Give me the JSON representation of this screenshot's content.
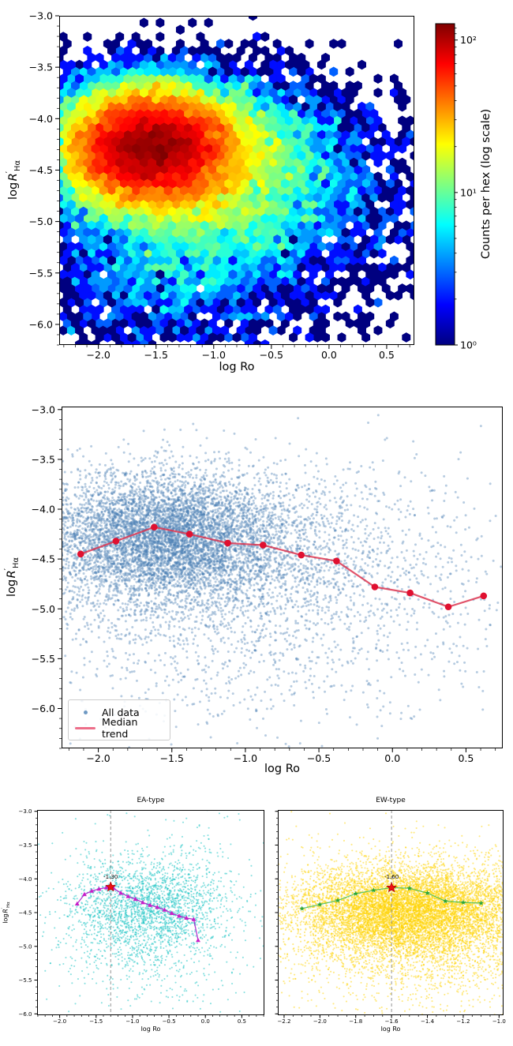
{
  "figure": {
    "background": "#ffffff"
  },
  "colors": {
    "all_scatter": "#4a80b4",
    "median_line": "#dc3550",
    "median_marker": "#e01030",
    "ea_scatter": "#27c7c7",
    "ea_line": "#aa22cc",
    "ea_marker": "#c81ec8",
    "ew_scatter": "#ffd400",
    "ew_line": "#3fba4a",
    "ew_marker": "#2aa63a",
    "peak_star": "#ee1111",
    "vline": "#888888",
    "legend_line": "#ed6e89"
  },
  "chart_data": [
    {
      "id": "hexbin-density",
      "type": "heatmap",
      "subtype": "hexbin",
      "xlabel": "log Ro",
      "ylabel": {
        "prefix": "log",
        "symbol": "R",
        "prime": "′",
        "sub": "Hα"
      },
      "xlim": [
        -2.34,
        0.74
      ],
      "ylim": [
        -6.2,
        -3.0
      ],
      "xticks": [
        -2.0,
        -1.5,
        -1.0,
        -0.5,
        0.0,
        0.5
      ],
      "yticks": [
        -3.0,
        -3.5,
        -4.0,
        -4.5,
        -5.0,
        -5.5,
        -6.0
      ],
      "colorbar": {
        "label": "Counts per hex (log scale)",
        "scale": "log",
        "vmax_approx": 128,
        "ticks": [
          {
            "value": 1,
            "label": "10⁰"
          },
          {
            "value": 10,
            "label": "10¹"
          },
          {
            "value": 100,
            "label": "10²"
          }
        ],
        "minor_ticks": [
          2,
          3,
          4,
          5,
          6,
          7,
          8,
          9,
          20,
          30,
          40,
          50,
          60,
          70,
          80,
          90,
          110,
          120
        ]
      },
      "density_model": {
        "gridsize": 44,
        "peak": {
          "x": -1.6,
          "y": -4.2
        },
        "clusters": [
          {
            "n": 20000,
            "cx": -1.55,
            "cy": -4.27,
            "sx": 0.4,
            "sy": 0.3
          },
          {
            "n": 5000,
            "cx": -1.0,
            "cy": -4.5,
            "sx": 0.65,
            "sy": 0.42
          },
          {
            "n": 2600,
            "cx": -0.9,
            "cy": -4.95,
            "sx": 0.85,
            "sy": 0.62
          },
          {
            "n": 900,
            "cx": -1.4,
            "cy": -5.5,
            "sx": 0.55,
            "sy": 0.45
          }
        ]
      }
    },
    {
      "id": "all-data-scatter",
      "type": "scatter",
      "xlabel": "log Ro",
      "ylabel": {
        "prefix": "log",
        "symbol": "R",
        "prime": "′",
        "sub": "Hα"
      },
      "xlim": [
        -2.25,
        0.75
      ],
      "ylim": [
        -6.4,
        -2.97
      ],
      "xticks": [
        -2.0,
        -1.5,
        -1.0,
        -0.5,
        0.0,
        0.5
      ],
      "yticks": [
        -3.0,
        -3.5,
        -4.0,
        -4.5,
        -5.0,
        -5.5,
        -6.0
      ],
      "legend": [
        {
          "label": "All data",
          "marker": "dot",
          "color": "#4a80b4"
        },
        {
          "label": "Median trend",
          "marker": "line",
          "color": "#ed6e89"
        }
      ],
      "median_trend": {
        "x": [
          -2.12,
          -1.88,
          -1.62,
          -1.38,
          -1.12,
          -0.88,
          -0.62,
          -0.38,
          -0.12,
          0.12,
          0.38,
          0.62
        ],
        "y": [
          -4.45,
          -4.32,
          -4.18,
          -4.25,
          -4.34,
          -4.36,
          -4.46,
          -4.52,
          -4.78,
          -4.84,
          -4.98,
          -4.87
        ]
      },
      "density_model": {
        "clusters": [
          {
            "n": 6000,
            "cx": -1.55,
            "cy": -4.27,
            "sx": 0.42,
            "sy": 0.32
          },
          {
            "n": 1700,
            "cx": -1.0,
            "cy": -4.5,
            "sx": 0.68,
            "sy": 0.45
          },
          {
            "n": 950,
            "cx": -0.85,
            "cy": -4.95,
            "sx": 0.9,
            "sy": 0.65
          },
          {
            "n": 300,
            "cx": -1.4,
            "cy": -5.45,
            "sx": 0.6,
            "sy": 0.5
          },
          {
            "n": 130,
            "cx": 0.15,
            "cy": -4.6,
            "sx": 0.4,
            "sy": 0.55
          }
        ]
      }
    },
    {
      "id": "ea-type",
      "type": "scatter",
      "title": "EA-type",
      "xlabel": "log Ro",
      "ylabel": {
        "prefix": "log",
        "symbol": "R",
        "prime": "′",
        "sub": "Hα"
      },
      "xlim": [
        -2.31,
        0.81
      ],
      "ylim": [
        -6.02,
        -2.98
      ],
      "xticks": [
        -2.0,
        -1.5,
        -1.0,
        -0.5,
        0.0,
        0.5
      ],
      "yticks": [
        -3.0,
        -3.5,
        -4.0,
        -4.5,
        -5.0,
        -5.5,
        -6.0
      ],
      "vline_x": -1.3,
      "peak": {
        "x": -1.3,
        "y": -4.12,
        "label": "-1.30"
      },
      "median_trend": {
        "x": [
          -1.76,
          -1.66,
          -1.56,
          -1.46,
          -1.36,
          -1.26,
          -1.16,
          -1.06,
          -0.96,
          -0.86,
          -0.76,
          -0.66,
          -0.56,
          -0.46,
          -0.36,
          -0.26,
          -0.16,
          -0.1
        ],
        "y": [
          -4.37,
          -4.23,
          -4.18,
          -4.15,
          -4.13,
          -4.14,
          -4.21,
          -4.26,
          -4.3,
          -4.35,
          -4.39,
          -4.42,
          -4.46,
          -4.51,
          -4.55,
          -4.58,
          -4.6,
          -4.91
        ]
      },
      "density_model": {
        "clusters": [
          {
            "n": 1900,
            "cx": -0.8,
            "cy": -4.42,
            "sx": 0.52,
            "sy": 0.36
          },
          {
            "n": 620,
            "cx": -0.85,
            "cy": -4.95,
            "sx": 0.75,
            "sy": 0.55
          },
          {
            "n": 280,
            "cx": -0.42,
            "cy": -4.05,
            "sx": 0.75,
            "sy": 0.6
          }
        ]
      }
    },
    {
      "id": "ew-type",
      "type": "scatter",
      "title": "EW-type",
      "xlabel": "log Ro",
      "xlim": [
        -2.235,
        -0.975
      ],
      "ylim": [
        -6.02,
        -2.98
      ],
      "xticks": [
        -2.2,
        -2.0,
        -1.8,
        -1.6,
        -1.4,
        -1.2,
        -1.0
      ],
      "yticks": [
        -3.0,
        -3.5,
        -4.0,
        -4.5,
        -5.0,
        -5.5,
        -6.0
      ],
      "yticklabels_visible": false,
      "vline_x": -1.6,
      "peak": {
        "x": -1.6,
        "y": -4.13,
        "label": "-1.60"
      },
      "median_trend": {
        "x": [
          -2.1,
          -2.0,
          -1.9,
          -1.8,
          -1.7,
          -1.6,
          -1.5,
          -1.4,
          -1.3,
          -1.2,
          -1.1
        ],
        "y": [
          -4.44,
          -4.38,
          -4.32,
          -4.22,
          -4.17,
          -4.13,
          -4.14,
          -4.21,
          -4.33,
          -4.35,
          -4.36
        ]
      },
      "density_model": {
        "clusters": [
          {
            "n": 7500,
            "cx": -1.52,
            "cy": -4.47,
            "sx": 0.3,
            "sy": 0.33
          },
          {
            "n": 3600,
            "cx": -1.38,
            "cy": -4.72,
            "sx": 0.48,
            "sy": 0.58
          }
        ]
      }
    }
  ]
}
